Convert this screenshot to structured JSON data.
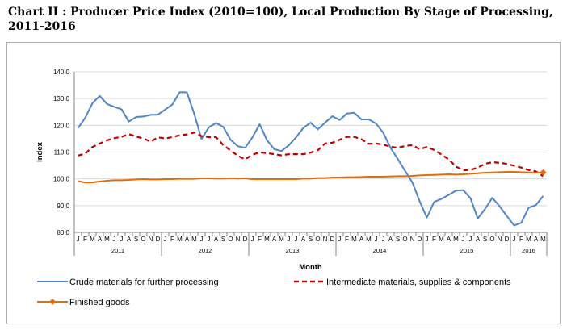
{
  "heading": {
    "line1": "Chart II : Producer Price Index (2010=100), Local Production By Stage of Processing,",
    "line2": "2011-2016"
  },
  "chart_data": {
    "type": "line",
    "title": "Chart II : Producer Price Index (2010=100), Local Production By Stage of Processing, 2011-2016",
    "xlabel": "Month",
    "ylabel": "Index",
    "ylim": [
      80.0,
      140.0
    ],
    "yticks": [
      "80.0",
      "90.0",
      "100.0",
      "110.0",
      "120.0",
      "130.0",
      "140.0"
    ],
    "grid": "horizontal",
    "legend_position": "bottom",
    "month_letters": [
      "J",
      "F",
      "M",
      "A",
      "M",
      "J",
      "J",
      "A",
      "S",
      "O",
      "N",
      "D"
    ],
    "years": [
      {
        "label": "2011",
        "months": 12
      },
      {
        "label": "2012",
        "months": 12
      },
      {
        "label": "2013",
        "months": 12
      },
      {
        "label": "2014",
        "months": 12
      },
      {
        "label": "2015",
        "months": 12
      },
      {
        "label": "2016",
        "months": 5
      }
    ],
    "series": [
      {
        "name": "Crude materials for further processing",
        "color": "#4f86c6",
        "style": "solid",
        "values": [
          118.9,
          122.8,
          128.3,
          131.0,
          128.0,
          126.9,
          126.0,
          121.4,
          123.1,
          123.3,
          123.9,
          124.0,
          125.9,
          127.8,
          132.4,
          132.3,
          124.3,
          114.9,
          119.2,
          120.9,
          119.4,
          114.6,
          112.2,
          111.6,
          115.5,
          120.4,
          114.5,
          111.1,
          110.4,
          112.5,
          115.5,
          119.0,
          121.0,
          118.5,
          121.0,
          123.4,
          122.0,
          124.4,
          124.7,
          122.2,
          122.2,
          120.7,
          117.2,
          111.6,
          107.4,
          103.0,
          98.7,
          91.7,
          85.5,
          91.4,
          92.5,
          94.0,
          95.6,
          95.8,
          92.8,
          85.2,
          88.7,
          92.9,
          89.8,
          86.1,
          82.6,
          83.6,
          89.2,
          90.2,
          93.6
        ]
      },
      {
        "name": "Intermediate materials, supplies & components",
        "color": "#c00000",
        "style": "dashed",
        "values": [
          108.7,
          109.4,
          111.9,
          113.2,
          114.4,
          115.2,
          115.7,
          116.7,
          115.8,
          115.1,
          113.9,
          115.5,
          115.1,
          115.6,
          116.3,
          116.6,
          117.3,
          116.0,
          115.6,
          115.6,
          112.6,
          110.6,
          108.6,
          107.3,
          109.0,
          109.9,
          109.6,
          109.2,
          108.8,
          109.2,
          109.2,
          109.2,
          109.8,
          110.7,
          113.2,
          113.5,
          114.6,
          115.7,
          115.7,
          114.8,
          113.1,
          113.2,
          112.8,
          112.0,
          111.6,
          112.3,
          112.6,
          111.1,
          111.9,
          110.8,
          109.1,
          107.3,
          104.6,
          103.2,
          103.3,
          104.2,
          105.6,
          106.2,
          106.0,
          105.6,
          104.9,
          104.2,
          103.3,
          102.8,
          101.0
        ]
      },
      {
        "name": "Finished goods",
        "color": "#e46c0a",
        "style": "solid-diamond",
        "values": [
          99.2,
          98.6,
          98.7,
          99.0,
          99.3,
          99.5,
          99.5,
          99.6,
          99.8,
          99.9,
          99.8,
          99.8,
          99.9,
          99.9,
          100.0,
          100.0,
          100.0,
          100.2,
          100.2,
          100.1,
          100.1,
          100.2,
          100.1,
          100.2,
          99.9,
          99.9,
          99.9,
          99.9,
          99.9,
          99.9,
          99.9,
          100.1,
          100.1,
          100.3,
          100.3,
          100.5,
          100.5,
          100.6,
          100.6,
          100.7,
          100.8,
          100.8,
          100.8,
          100.9,
          101.0,
          101.0,
          101.1,
          101.3,
          101.4,
          101.5,
          101.6,
          101.7,
          101.6,
          101.7,
          101.9,
          102.1,
          102.3,
          102.4,
          102.5,
          102.6,
          102.6,
          102.5,
          102.4,
          102.3,
          102.4
        ]
      }
    ]
  }
}
